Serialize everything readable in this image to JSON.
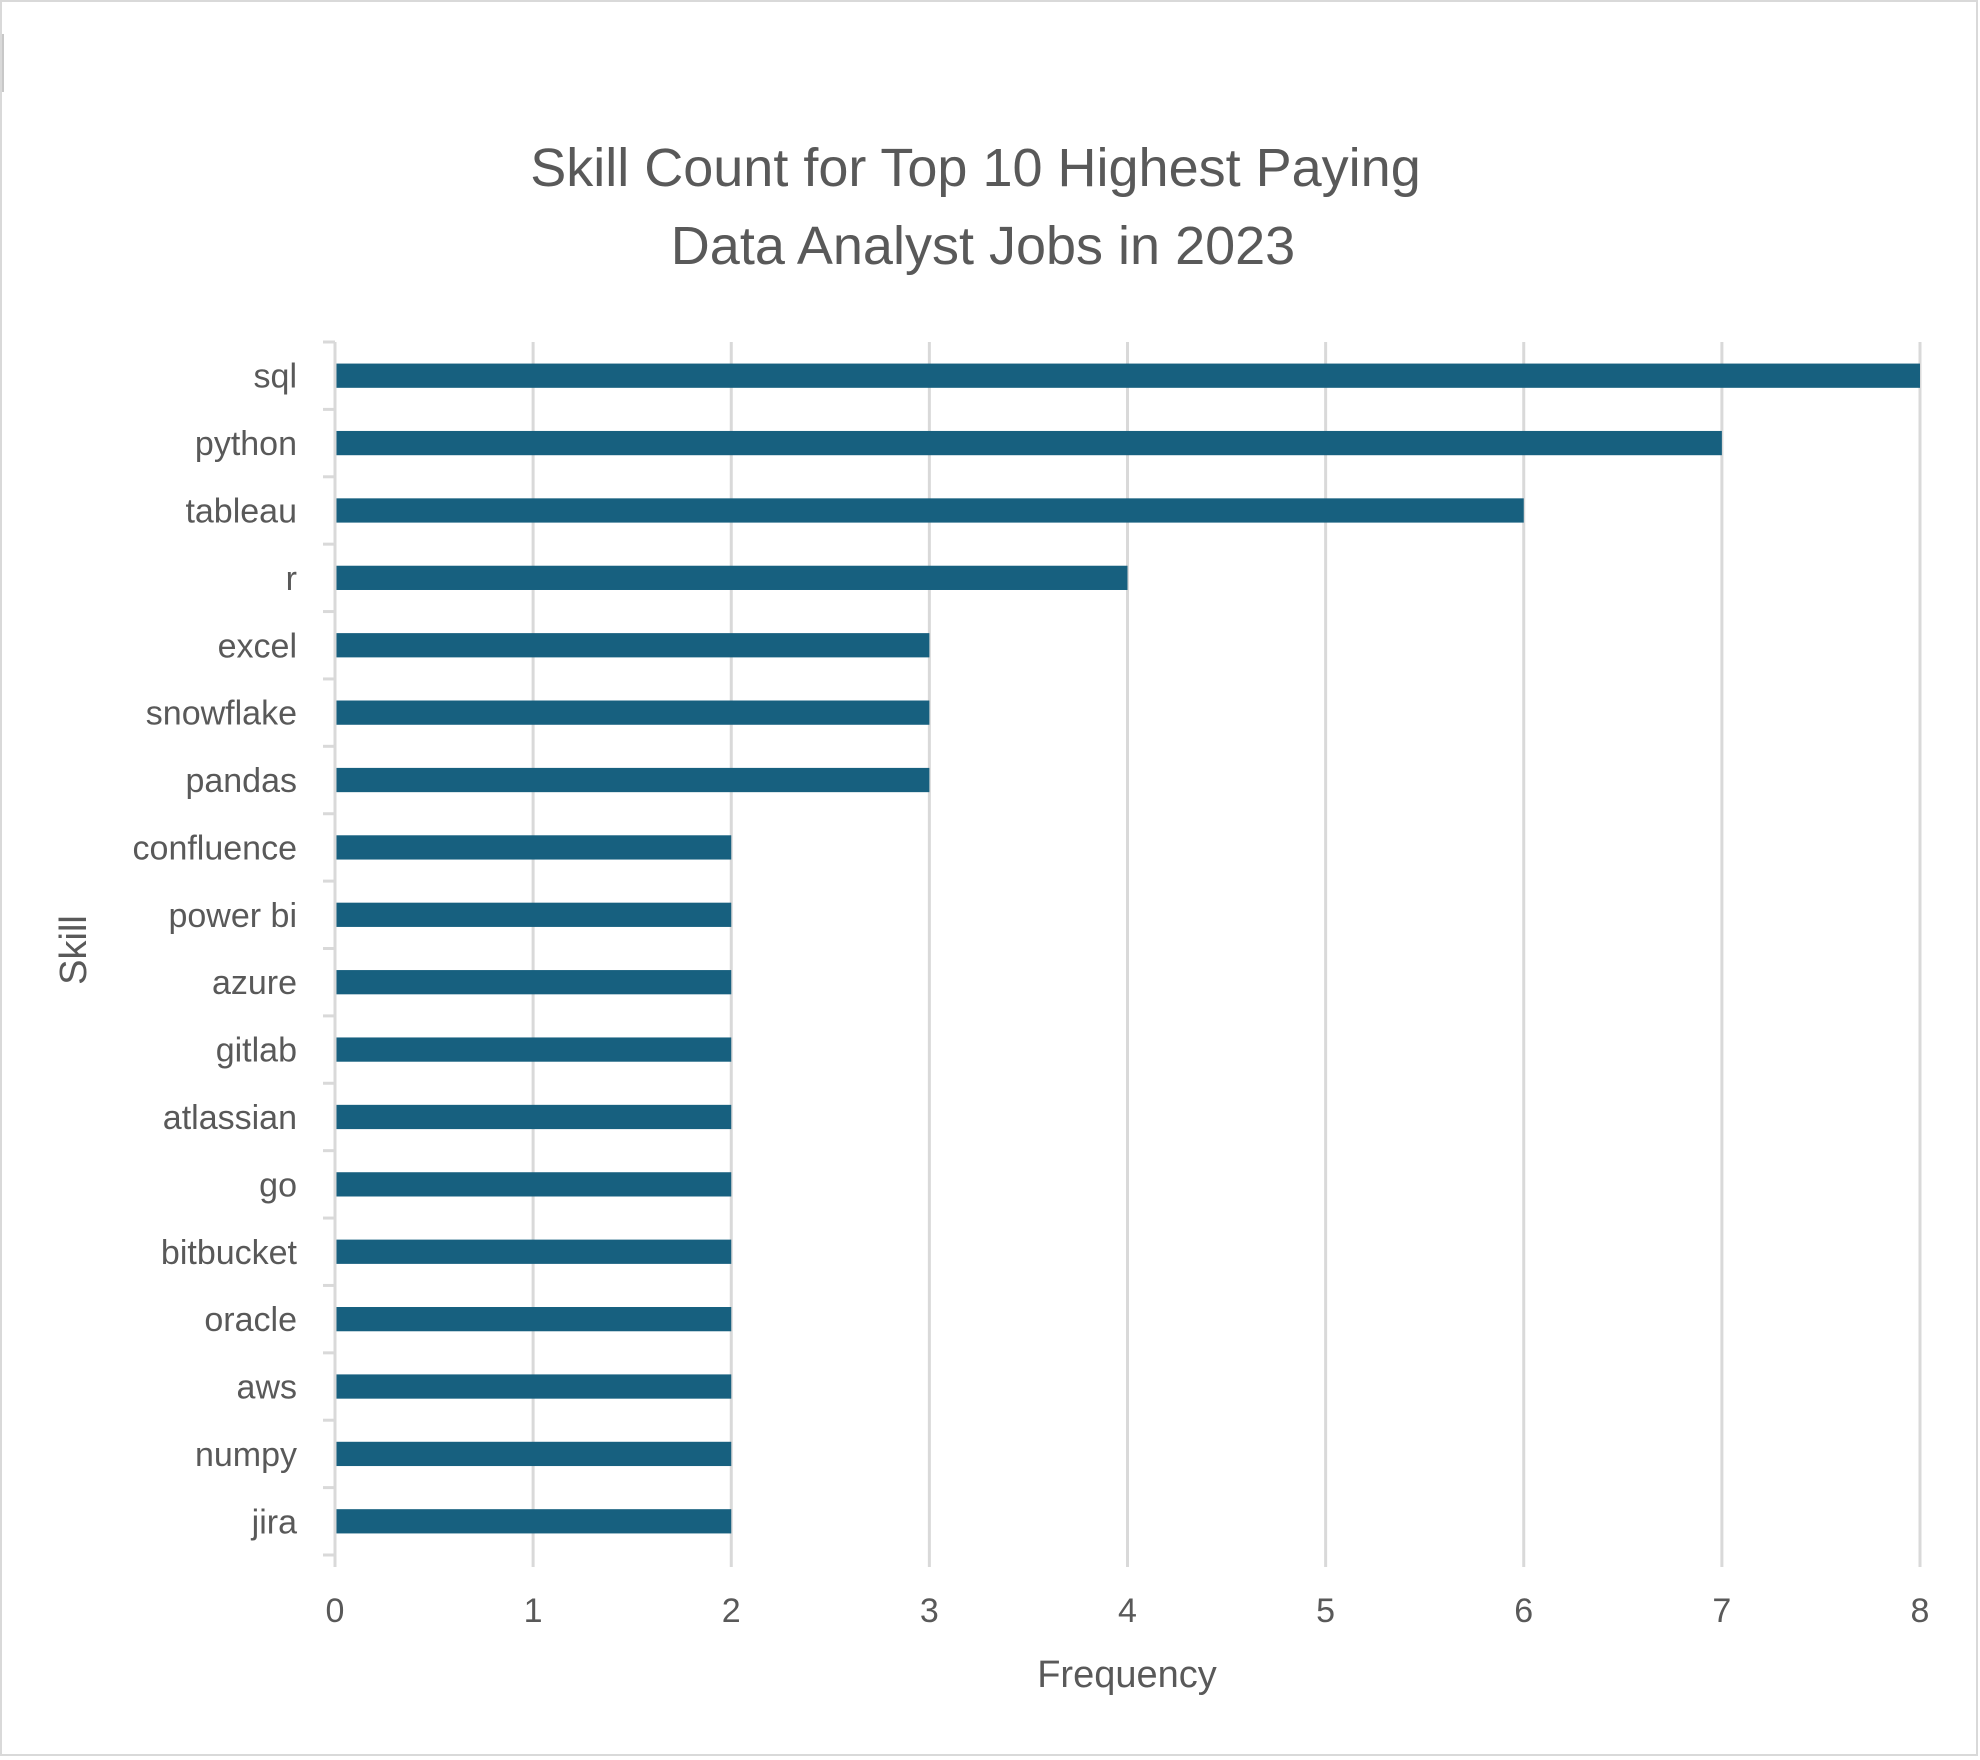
{
  "chart_data": {
    "type": "bar",
    "orientation": "horizontal",
    "title": "Skill Count for Top 10 Highest Paying Data Analyst Jobs in 2023",
    "title_lines": [
      "Skill Count for Top 10 Highest Paying",
      "Data Analyst Jobs in 2023"
    ],
    "xlabel": "Frequency",
    "ylabel": "Skill",
    "xlim": [
      0,
      8
    ],
    "xticks": [
      "0",
      "1",
      "2",
      "3",
      "4",
      "5",
      "6",
      "7",
      "8"
    ],
    "grid": "vertical",
    "legend": "none",
    "bar_color": "#17607f",
    "gridline_color": "#d9d9d9",
    "text_color": "#595959",
    "categories": [
      "sql",
      "python",
      "tableau",
      "r",
      "excel",
      "snowflake",
      "pandas",
      "confluence",
      "power bi",
      "azure",
      "gitlab",
      "atlassian",
      "go",
      "bitbucket",
      "oracle",
      "aws",
      "numpy",
      "jira"
    ],
    "values": [
      8,
      7,
      6,
      4,
      3,
      3,
      3,
      2,
      2,
      2,
      2,
      2,
      2,
      2,
      2,
      2,
      2,
      2
    ]
  }
}
